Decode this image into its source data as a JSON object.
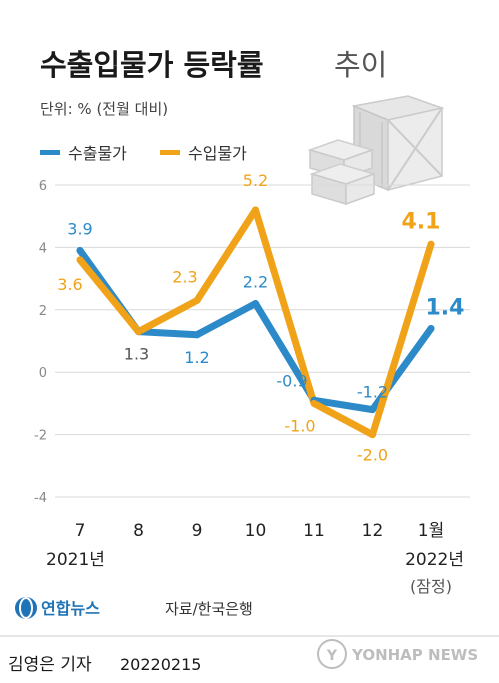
{
  "header": {
    "title_bold": "수출입물가 등락률",
    "title_light": "추이",
    "unit": "단위: % (전월 대비)"
  },
  "legend": [
    {
      "label": "수출물가",
      "color": "#2c8ac9"
    },
    {
      "label": "수입물가",
      "color": "#f0a318"
    }
  ],
  "chart_data": {
    "type": "line",
    "categories": [
      "7",
      "8",
      "9",
      "10",
      "11",
      "12",
      "1월"
    ],
    "category_sublabels": [
      "2021년",
      "",
      "",
      "",
      "",
      "",
      "2022년"
    ],
    "category_sublabels_2": [
      "",
      "",
      "",
      "",
      "",
      "",
      "(잠정)"
    ],
    "ylim": [
      -4,
      6
    ],
    "yticks": [
      6,
      4,
      2,
      0,
      -2,
      -4
    ],
    "series": [
      {
        "name": "수출물가",
        "color": "#2c8ac9",
        "values": [
          3.9,
          1.3,
          1.2,
          2.2,
          -0.9,
          -1.2,
          1.4
        ],
        "labels": [
          "3.9",
          "",
          "1.2",
          "2.2",
          "-0.9",
          "-1.2",
          "1.4"
        ]
      },
      {
        "name": "수입물가",
        "color": "#f0a318",
        "values": [
          3.6,
          1.3,
          2.3,
          5.2,
          -1.0,
          -2.0,
          4.1
        ],
        "labels": [
          "3.6",
          "",
          "2.3",
          "5.2",
          "-1.0",
          "-2.0",
          "4.1"
        ]
      }
    ],
    "shared_labels": [
      "",
      "1.3",
      "",
      "",
      "",
      "",
      ""
    ],
    "shared_label_color": "#555555"
  },
  "footer": {
    "logo_text": "연합뉴스",
    "source": "자료/한국은행",
    "reporter": "김영은 기자",
    "date": "20220215",
    "watermark": "YONHAP NEWS"
  }
}
